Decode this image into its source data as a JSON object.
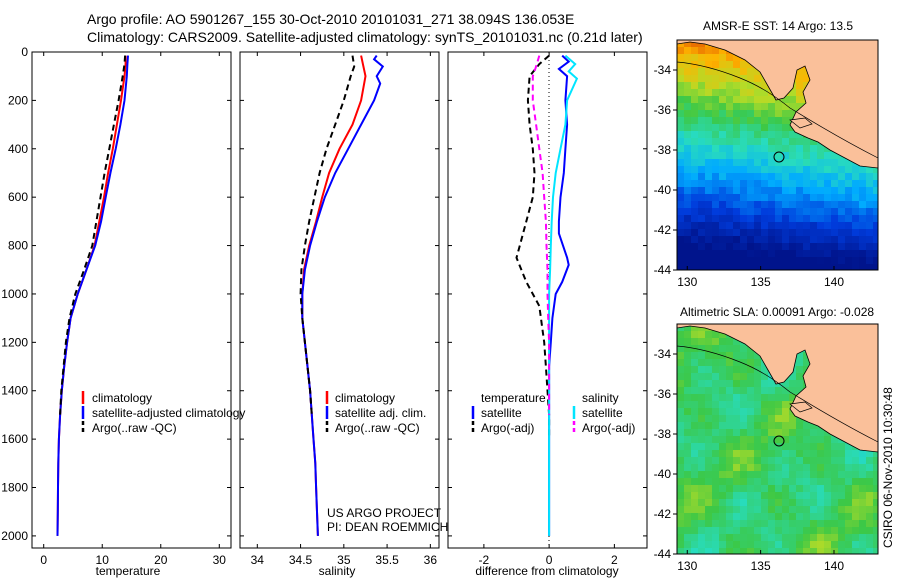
{
  "header": {
    "line1": "Argo profile: AO 5901267_155 30-Oct-2010 20101031_271 38.094S 136.053E",
    "line2": "Climatology: CARS2009. Satellite-adjusted climatology: synTS_20101031.nc (0.21d later)"
  },
  "side_label": "CSIRO 06-Nov-2010 10:30:48",
  "credit": {
    "line1": "US ARGO PROJECT",
    "line2": "PI: DEAN ROEMMICH"
  },
  "colors": {
    "climatology": "#ff0000",
    "satellite": "#0000ff",
    "argo": "#000000",
    "cyan": "#00e5ff",
    "magenta": "#ff00ff",
    "land": "#fac09a"
  },
  "chart_data": [
    {
      "type": "line",
      "panel": "temperature",
      "xlabel": "temperature",
      "ylabel": "",
      "xlim": [
        -2,
        32
      ],
      "ylim": [
        2050,
        0
      ],
      "xticks": [
        0,
        10,
        20,
        30
      ],
      "yticks": [
        0,
        200,
        400,
        600,
        800,
        1000,
        1200,
        1400,
        1600,
        1800,
        2000
      ],
      "legend": [
        "climatology",
        "satellite-adjusted climatology",
        "Argo(..raw -QC)"
      ],
      "series": [
        {
          "name": "climatology",
          "color": "#ff0000",
          "dash": "",
          "points": [
            [
              14,
              15
            ],
            [
              14,
              50
            ],
            [
              13.8,
              100
            ],
            [
              13.2,
              200
            ],
            [
              12.5,
              300
            ],
            [
              11.8,
              400
            ],
            [
              11,
              500
            ],
            [
              10.3,
              600
            ],
            [
              9.5,
              700
            ],
            [
              8.7,
              800
            ],
            [
              7.3,
              900
            ],
            [
              5.8,
              1000
            ],
            [
              4.6,
              1100
            ],
            [
              4.0,
              1200
            ],
            [
              3.5,
              1300
            ],
            [
              3.1,
              1400
            ],
            [
              2.8,
              1500
            ],
            [
              2.6,
              1600
            ],
            [
              2.5,
              1700
            ],
            [
              2.45,
              1800
            ],
            [
              2.4,
              1900
            ],
            [
              2.35,
              2000
            ]
          ]
        },
        {
          "name": "satellite-adjusted climatology",
          "color": "#0000ff",
          "dash": "",
          "points": [
            [
              14.4,
              15
            ],
            [
              14.3,
              50
            ],
            [
              14.2,
              100
            ],
            [
              13.8,
              200
            ],
            [
              13.1,
              300
            ],
            [
              12.3,
              400
            ],
            [
              11.4,
              500
            ],
            [
              10.6,
              600
            ],
            [
              9.8,
              700
            ],
            [
              8.8,
              800
            ],
            [
              7.3,
              900
            ],
            [
              5.8,
              1000
            ],
            [
              4.6,
              1100
            ],
            [
              4.0,
              1200
            ],
            [
              3.5,
              1300
            ],
            [
              3.1,
              1400
            ],
            [
              2.8,
              1500
            ],
            [
              2.6,
              1600
            ],
            [
              2.5,
              1700
            ],
            [
              2.45,
              1800
            ],
            [
              2.4,
              1900
            ],
            [
              2.35,
              2000
            ]
          ]
        },
        {
          "name": "Argo(..raw -QC)",
          "color": "#000000",
          "dash": "6,4",
          "points": [
            [
              13.9,
              15
            ],
            [
              13.8,
              50
            ],
            [
              13.5,
              100
            ],
            [
              12.8,
              200
            ],
            [
              12,
              300
            ],
            [
              11.2,
              400
            ],
            [
              10.4,
              500
            ],
            [
              9.7,
              600
            ],
            [
              9,
              700
            ],
            [
              8.3,
              800
            ],
            [
              6.9,
              900
            ],
            [
              5.4,
              1000
            ],
            [
              4.4,
              1100
            ],
            [
              3.8,
              1200
            ],
            [
              3.4,
              1300
            ],
            [
              3.0,
              1400
            ],
            [
              2.8,
              1500
            ]
          ]
        }
      ]
    },
    {
      "type": "line",
      "panel": "salinity",
      "xlabel": "salinity",
      "ylabel": "",
      "xlim": [
        33.8,
        36.1
      ],
      "ylim": [
        2050,
        0
      ],
      "xticks": [
        34,
        34.5,
        35,
        35.5,
        36
      ],
      "legend": [
        "climatology",
        "satellite adj. clim.",
        "Argo(..raw -QC)"
      ],
      "series": [
        {
          "name": "climatology",
          "color": "#ff0000",
          "dash": "",
          "points": [
            [
              35.2,
              15
            ],
            [
              35.22,
              50
            ],
            [
              35.25,
              100
            ],
            [
              35.2,
              200
            ],
            [
              35.1,
              300
            ],
            [
              34.95,
              400
            ],
            [
              34.83,
              500
            ],
            [
              34.75,
              600
            ],
            [
              34.68,
              700
            ],
            [
              34.6,
              800
            ],
            [
              34.54,
              900
            ],
            [
              34.52,
              1000
            ],
            [
              34.52,
              1100
            ],
            [
              34.55,
              1200
            ],
            [
              34.58,
              1300
            ],
            [
              34.61,
              1400
            ],
            [
              34.63,
              1500
            ],
            [
              34.65,
              1600
            ],
            [
              34.67,
              1700
            ],
            [
              34.68,
              1800
            ],
            [
              34.69,
              1900
            ],
            [
              34.7,
              2000
            ]
          ]
        },
        {
          "name": "satellite adj. clim.",
          "color": "#0000ff",
          "dash": "",
          "points": [
            [
              35.38,
              15
            ],
            [
              35.35,
              30
            ],
            [
              35.45,
              60
            ],
            [
              35.38,
              100
            ],
            [
              35.42,
              130
            ],
            [
              35.35,
              200
            ],
            [
              35.2,
              300
            ],
            [
              35.05,
              400
            ],
            [
              34.9,
              500
            ],
            [
              34.78,
              600
            ],
            [
              34.69,
              700
            ],
            [
              34.61,
              800
            ],
            [
              34.55,
              900
            ],
            [
              34.52,
              1000
            ],
            [
              34.52,
              1100
            ],
            [
              34.55,
              1200
            ],
            [
              34.58,
              1300
            ],
            [
              34.61,
              1400
            ],
            [
              34.63,
              1500
            ],
            [
              34.65,
              1600
            ],
            [
              34.67,
              1700
            ],
            [
              34.68,
              1800
            ],
            [
              34.69,
              1900
            ],
            [
              34.7,
              2000
            ]
          ]
        },
        {
          "name": "Argo(..raw -QC)",
          "color": "#000000",
          "dash": "6,4",
          "points": [
            [
              35.1,
              15
            ],
            [
              35.12,
              60
            ],
            [
              35.08,
              100
            ],
            [
              35.0,
              200
            ],
            [
              34.9,
              300
            ],
            [
              34.8,
              400
            ],
            [
              34.72,
              500
            ],
            [
              34.66,
              600
            ],
            [
              34.6,
              700
            ],
            [
              34.55,
              800
            ],
            [
              34.51,
              900
            ],
            [
              34.5,
              1000
            ],
            [
              34.52,
              1100
            ],
            [
              34.55,
              1200
            ],
            [
              34.58,
              1300
            ],
            [
              34.61,
              1400
            ],
            [
              34.63,
              1500
            ]
          ]
        }
      ]
    },
    {
      "type": "line",
      "panel": "difference",
      "xlabel": "difference from climatology",
      "ylabel": "",
      "xlim": [
        -3.1,
        3.0
      ],
      "ylim": [
        2050,
        0
      ],
      "xticks": [
        -2,
        0,
        2
      ],
      "legend_temperature": {
        "title": "temperature",
        "items": [
          "satellite",
          "Argo(-adj)"
        ]
      },
      "legend_salinity": {
        "title": "salinity",
        "items": [
          "satellite",
          "Argo(-adj)"
        ]
      },
      "series": [
        {
          "name": "temperature satellite",
          "color": "#0000ff",
          "dash": "",
          "points": [
            [
              0.4,
              15
            ],
            [
              0.6,
              40
            ],
            [
              0.3,
              70
            ],
            [
              0.55,
              100
            ],
            [
              0.5,
              200
            ],
            [
              0.55,
              300
            ],
            [
              0.5,
              400
            ],
            [
              0.45,
              500
            ],
            [
              0.35,
              600
            ],
            [
              0.3,
              700
            ],
            [
              0.3,
              750
            ],
            [
              0.55,
              850
            ],
            [
              0.6,
              880
            ],
            [
              0.4,
              950
            ],
            [
              0.2,
              1000
            ],
            [
              0.1,
              1100
            ],
            [
              0.05,
              1200
            ],
            [
              0,
              1300
            ],
            [
              0,
              2000
            ]
          ]
        },
        {
          "name": "temperature Argo(-adj)",
          "color": "#000000",
          "dash": "6,4",
          "points": [
            [
              0,
              15
            ],
            [
              -0.3,
              50
            ],
            [
              -0.6,
              100
            ],
            [
              -0.65,
              200
            ],
            [
              -0.6,
              300
            ],
            [
              -0.5,
              400
            ],
            [
              -0.45,
              500
            ],
            [
              -0.5,
              600
            ],
            [
              -0.7,
              700
            ],
            [
              -0.9,
              800
            ],
            [
              -1.0,
              850
            ],
            [
              -0.7,
              950
            ],
            [
              -0.3,
              1050
            ],
            [
              -0.15,
              1200
            ],
            [
              -0.1,
              1300
            ],
            [
              -0.05,
              1400
            ],
            [
              0,
              1500
            ],
            [
              0,
              1600
            ]
          ]
        },
        {
          "name": "salinity satellite",
          "color": "#00e5ff",
          "dash": "",
          "points": [
            [
              0.5,
              15
            ],
            [
              0.8,
              50
            ],
            [
              0.6,
              80
            ],
            [
              0.85,
              110
            ],
            [
              0.55,
              200
            ],
            [
              0.5,
              300
            ],
            [
              0.35,
              400
            ],
            [
              0.2,
              500
            ],
            [
              0.12,
              600
            ],
            [
              0.08,
              700
            ],
            [
              0.05,
              800
            ],
            [
              0.03,
              900
            ],
            [
              0,
              1000
            ],
            [
              0,
              2000
            ]
          ]
        },
        {
          "name": "salinity Argo(-adj)",
          "color": "#ff00ff",
          "dash": "6,4",
          "points": [
            [
              -0.3,
              15
            ],
            [
              -0.4,
              60
            ],
            [
              -0.5,
              100
            ],
            [
              -0.5,
              200
            ],
            [
              -0.4,
              300
            ],
            [
              -0.3,
              400
            ],
            [
              -0.2,
              500
            ],
            [
              -0.15,
              600
            ],
            [
              -0.1,
              700
            ],
            [
              -0.08,
              800
            ],
            [
              -0.05,
              900
            ],
            [
              -0.05,
              1000
            ],
            [
              -0.03,
              1100
            ],
            [
              0,
              1200
            ],
            [
              0,
              1500
            ]
          ]
        }
      ]
    },
    {
      "type": "heatmap",
      "panel": "sst_map",
      "title": "AMSR-E SST: 14 Argo: 13.5",
      "xlim": [
        129.3,
        143
      ],
      "ylim": [
        -44,
        -32.5
      ],
      "xticks": [
        130,
        135,
        140
      ],
      "yticks": [
        -34,
        -36,
        -38,
        -40,
        -42,
        -44
      ]
    },
    {
      "type": "heatmap",
      "panel": "sla_map",
      "title": "Altimetric SLA: 0.00091 Argo: -0.028",
      "xlim": [
        129.3,
        143
      ],
      "ylim": [
        -44,
        -32.5
      ],
      "xticks": [
        130,
        135,
        140
      ],
      "yticks": [
        -34,
        -36,
        -38,
        -40,
        -42,
        -44
      ]
    }
  ]
}
